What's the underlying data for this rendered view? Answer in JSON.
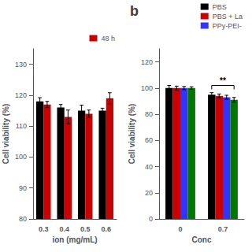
{
  "chart_data": [
    {
      "type": "bar",
      "categories": [
        "0.3",
        "0.4",
        "0.5",
        "0.6"
      ],
      "xlabel": "ion (mg/mL)",
      "ylabel": "Cell viability (%)",
      "ylim": [
        80,
        135
      ],
      "yticks": [
        80,
        90,
        100,
        110,
        120,
        130
      ],
      "grid": false,
      "legend": "upper right",
      "series": [
        {
          "color": "#000000",
          "values": [
            118,
            116,
            115,
            115
          ],
          "errors": [
            1.2,
            1.0,
            1.8,
            0.8
          ]
        },
        {
          "name": "48 h",
          "color": "#cc0000",
          "values": [
            117,
            113,
            114,
            119
          ],
          "errors": [
            1.0,
            2.2,
            1.2,
            1.8
          ]
        }
      ]
    },
    {
      "type": "bar",
      "title": "b",
      "categories": [
        "0",
        "0.7"
      ],
      "xlabel": "Conc",
      "ylabel": "Cell viability (%)",
      "ylim": [
        0,
        130
      ],
      "yticks": [
        0,
        20,
        40,
        60,
        80,
        100,
        120
      ],
      "grid": false,
      "legend": "upper right",
      "series": [
        {
          "name": "PBS",
          "color": "#000000",
          "values": [
            100,
            95
          ],
          "errors": [
            2.0,
            1.5
          ]
        },
        {
          "name": "PBS + La",
          "color": "#cc0000",
          "values": [
            100,
            94
          ],
          "errors": [
            1.5,
            1.5
          ]
        },
        {
          "name": "PPy-PEI-",
          "color": "#3333ff",
          "values": [
            100,
            93
          ],
          "errors": [
            1.2,
            1.5
          ]
        },
        {
          "color": "#007700",
          "values": [
            100,
            91
          ],
          "errors": [
            1.0,
            1.8
          ]
        }
      ],
      "annotations": [
        {
          "text": "**",
          "x": "0.7",
          "y": 102,
          "bracket_from": 99
        }
      ]
    }
  ]
}
